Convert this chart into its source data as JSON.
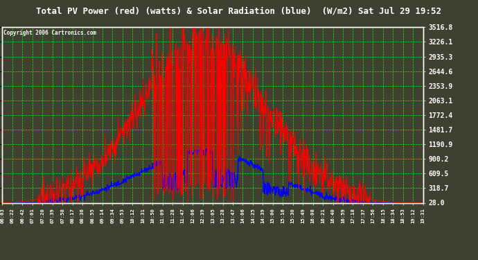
{
  "title": "Total PV Power (red) (watts) & Solar Radiation (blue)  (W/m2) Sat Jul 29 19:52",
  "copyright": "Copyright 2006 Cartronics.com",
  "background_color": "#404030",
  "plot_bg_color": "#404030",
  "grid_color": "#00ff00",
  "title_color": "#ffffff",
  "copyright_color": "#ffffff",
  "ytick_color": "#ffffff",
  "xtick_color": "#ffffff",
  "y_right_labels": [
    3516.8,
    3226.1,
    2935.3,
    2644.6,
    2353.9,
    2063.1,
    1772.4,
    1481.7,
    1190.9,
    900.2,
    609.5,
    318.7,
    28.0
  ],
  "y_min": 28.0,
  "y_max": 3516.8,
  "x_labels": [
    "06:03",
    "06:22",
    "06:42",
    "07:01",
    "07:20",
    "07:39",
    "07:58",
    "08:17",
    "08:36",
    "08:55",
    "09:14",
    "09:34",
    "09:53",
    "10:12",
    "10:31",
    "10:50",
    "11:09",
    "11:28",
    "11:47",
    "12:06",
    "12:39",
    "13:05",
    "13:28",
    "13:47",
    "14:06",
    "14:25",
    "14:39",
    "15:00",
    "15:16",
    "15:30",
    "15:49",
    "16:08",
    "16:21",
    "16:40",
    "16:59",
    "17:18",
    "17:37",
    "17:56",
    "18:15",
    "18:34",
    "18:53",
    "19:12",
    "19:31"
  ]
}
